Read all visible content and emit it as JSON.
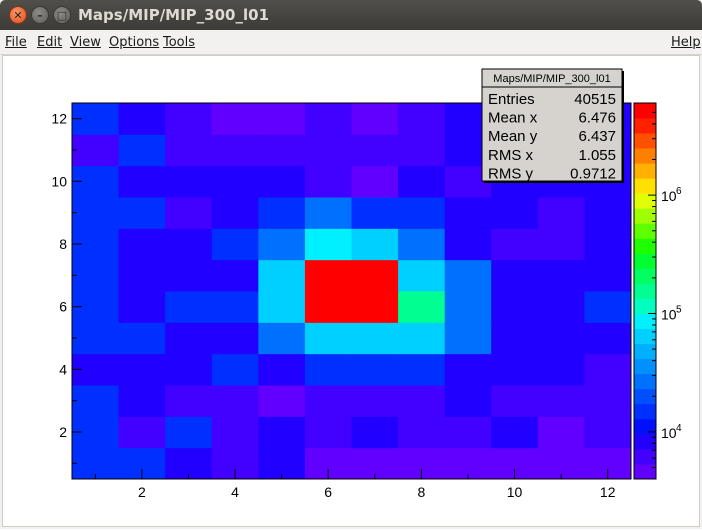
{
  "window": {
    "title": "Maps/MIP/MIP_300_l01"
  },
  "menu": {
    "file": "File",
    "edit": "Edit",
    "view": "View",
    "options": "Options",
    "tools": "Tools",
    "help": "Help"
  },
  "stats": {
    "title": "Maps/MIP/MIP_300_l01",
    "rows": [
      {
        "label": "Entries",
        "value": "40515"
      },
      {
        "label": "Mean x",
        "value": "6.476"
      },
      {
        "label": "Mean y",
        "value": "6.437"
      },
      {
        "label": "RMS x",
        "value": "1.055"
      },
      {
        "label": "RMS y",
        "value": "0.9712"
      }
    ]
  },
  "chart_data": {
    "type": "heatmap",
    "title": "",
    "xlabel": "",
    "ylabel": "",
    "xlim": [
      0.5,
      12.5
    ],
    "ylim": [
      0.5,
      12.5
    ],
    "x_ticks": [
      2,
      4,
      6,
      8,
      10,
      12
    ],
    "y_ticks": [
      2,
      4,
      6,
      8,
      10,
      12
    ],
    "colorbar": {
      "scale": "log",
      "range": [
        4000,
        6000000
      ],
      "ticks": [
        10000,
        100000,
        1000000
      ],
      "tick_labels": [
        "10",
        "10",
        "10"
      ],
      "tick_exponents": [
        "4",
        "5",
        "6"
      ]
    },
    "palette": [
      "#6100ff",
      "#4100ff",
      "#2100ff",
      "#0010ff",
      "#0030ff",
      "#0050ff",
      "#0070ff",
      "#0090ff",
      "#00b0ff",
      "#00d0ff",
      "#00f0ff",
      "#00ffc0",
      "#00ff90",
      "#00ff60",
      "#00ff30",
      "#20ff00",
      "#60ff00",
      "#a0ff00",
      "#e0ff00",
      "#ffe000",
      "#ffb000",
      "#ff8000",
      "#ff5000",
      "#ff2000",
      "#ff0000"
    ],
    "grid": false,
    "legend": "none",
    "z": [
      [
        15000,
        15000,
        8000,
        6000,
        8000,
        5000,
        5000,
        4500,
        5000,
        5000,
        4500,
        5000
      ],
      [
        15000,
        6000,
        15000,
        6500,
        8000,
        6500,
        9000,
        6500,
        6500,
        8000,
        5000,
        7000
      ],
      [
        15000,
        7500,
        5500,
        7000,
        5000,
        7000,
        7000,
        7000,
        9000,
        7000,
        6500,
        7000
      ],
      [
        8000,
        8000,
        8000,
        15000,
        8000,
        15000,
        15000,
        15000,
        8000,
        8000,
        8000,
        6500
      ],
      [
        15000,
        15000,
        9000,
        8000,
        25000,
        60000,
        60000,
        70000,
        25000,
        9000,
        9000,
        9000
      ],
      [
        15000,
        9000,
        15000,
        15000,
        60000,
        5000000,
        5000000,
        150000,
        25000,
        9000,
        9000,
        15000
      ],
      [
        15000,
        9000,
        9000,
        9000,
        70000,
        5000000,
        5000000,
        60000,
        25000,
        9000,
        9000,
        9000
      ],
      [
        15000,
        9000,
        9000,
        15000,
        25000,
        80000,
        60000,
        25000,
        9000,
        7000,
        7000,
        9000
      ],
      [
        15000,
        15000,
        6500,
        9000,
        15000,
        25000,
        15000,
        15000,
        9000,
        9000,
        5500,
        8000
      ],
      [
        15000,
        8000,
        8000,
        8000,
        8000,
        6500,
        5000,
        8000,
        6500,
        8000,
        8000,
        8000
      ],
      [
        7000,
        15000,
        6500,
        6500,
        5500,
        5500,
        7000,
        7000,
        9000,
        7000,
        7000,
        9000
      ],
      [
        15000,
        8000,
        6500,
        4500,
        4500,
        7000,
        4500,
        6500,
        8000,
        8000,
        8000,
        8000
      ]
    ]
  }
}
